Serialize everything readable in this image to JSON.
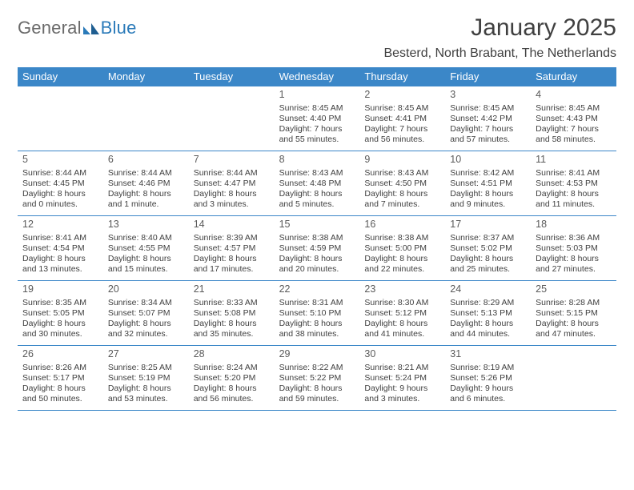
{
  "brand": {
    "name_left": "General",
    "name_right": "Blue"
  },
  "title": "January 2025",
  "location": "Besterd, North Brabant, The Netherlands",
  "colors": {
    "header_bg": "#3b87c8",
    "header_text": "#ffffff",
    "text": "#404040",
    "brand_gray": "#6a6a6a",
    "brand_blue": "#2a7ab9"
  },
  "day_names": [
    "Sunday",
    "Monday",
    "Tuesday",
    "Wednesday",
    "Thursday",
    "Friday",
    "Saturday"
  ],
  "weeks": [
    [
      null,
      null,
      null,
      {
        "n": "1",
        "sunrise": "Sunrise: 8:45 AM",
        "sunset": "Sunset: 4:40 PM",
        "day1": "Daylight: 7 hours",
        "day2": "and 55 minutes."
      },
      {
        "n": "2",
        "sunrise": "Sunrise: 8:45 AM",
        "sunset": "Sunset: 4:41 PM",
        "day1": "Daylight: 7 hours",
        "day2": "and 56 minutes."
      },
      {
        "n": "3",
        "sunrise": "Sunrise: 8:45 AM",
        "sunset": "Sunset: 4:42 PM",
        "day1": "Daylight: 7 hours",
        "day2": "and 57 minutes."
      },
      {
        "n": "4",
        "sunrise": "Sunrise: 8:45 AM",
        "sunset": "Sunset: 4:43 PM",
        "day1": "Daylight: 7 hours",
        "day2": "and 58 minutes."
      }
    ],
    [
      {
        "n": "5",
        "sunrise": "Sunrise: 8:44 AM",
        "sunset": "Sunset: 4:45 PM",
        "day1": "Daylight: 8 hours",
        "day2": "and 0 minutes."
      },
      {
        "n": "6",
        "sunrise": "Sunrise: 8:44 AM",
        "sunset": "Sunset: 4:46 PM",
        "day1": "Daylight: 8 hours",
        "day2": "and 1 minute."
      },
      {
        "n": "7",
        "sunrise": "Sunrise: 8:44 AM",
        "sunset": "Sunset: 4:47 PM",
        "day1": "Daylight: 8 hours",
        "day2": "and 3 minutes."
      },
      {
        "n": "8",
        "sunrise": "Sunrise: 8:43 AM",
        "sunset": "Sunset: 4:48 PM",
        "day1": "Daylight: 8 hours",
        "day2": "and 5 minutes."
      },
      {
        "n": "9",
        "sunrise": "Sunrise: 8:43 AM",
        "sunset": "Sunset: 4:50 PM",
        "day1": "Daylight: 8 hours",
        "day2": "and 7 minutes."
      },
      {
        "n": "10",
        "sunrise": "Sunrise: 8:42 AM",
        "sunset": "Sunset: 4:51 PM",
        "day1": "Daylight: 8 hours",
        "day2": "and 9 minutes."
      },
      {
        "n": "11",
        "sunrise": "Sunrise: 8:41 AM",
        "sunset": "Sunset: 4:53 PM",
        "day1": "Daylight: 8 hours",
        "day2": "and 11 minutes."
      }
    ],
    [
      {
        "n": "12",
        "sunrise": "Sunrise: 8:41 AM",
        "sunset": "Sunset: 4:54 PM",
        "day1": "Daylight: 8 hours",
        "day2": "and 13 minutes."
      },
      {
        "n": "13",
        "sunrise": "Sunrise: 8:40 AM",
        "sunset": "Sunset: 4:55 PM",
        "day1": "Daylight: 8 hours",
        "day2": "and 15 minutes."
      },
      {
        "n": "14",
        "sunrise": "Sunrise: 8:39 AM",
        "sunset": "Sunset: 4:57 PM",
        "day1": "Daylight: 8 hours",
        "day2": "and 17 minutes."
      },
      {
        "n": "15",
        "sunrise": "Sunrise: 8:38 AM",
        "sunset": "Sunset: 4:59 PM",
        "day1": "Daylight: 8 hours",
        "day2": "and 20 minutes."
      },
      {
        "n": "16",
        "sunrise": "Sunrise: 8:38 AM",
        "sunset": "Sunset: 5:00 PM",
        "day1": "Daylight: 8 hours",
        "day2": "and 22 minutes."
      },
      {
        "n": "17",
        "sunrise": "Sunrise: 8:37 AM",
        "sunset": "Sunset: 5:02 PM",
        "day1": "Daylight: 8 hours",
        "day2": "and 25 minutes."
      },
      {
        "n": "18",
        "sunrise": "Sunrise: 8:36 AM",
        "sunset": "Sunset: 5:03 PM",
        "day1": "Daylight: 8 hours",
        "day2": "and 27 minutes."
      }
    ],
    [
      {
        "n": "19",
        "sunrise": "Sunrise: 8:35 AM",
        "sunset": "Sunset: 5:05 PM",
        "day1": "Daylight: 8 hours",
        "day2": "and 30 minutes."
      },
      {
        "n": "20",
        "sunrise": "Sunrise: 8:34 AM",
        "sunset": "Sunset: 5:07 PM",
        "day1": "Daylight: 8 hours",
        "day2": "and 32 minutes."
      },
      {
        "n": "21",
        "sunrise": "Sunrise: 8:33 AM",
        "sunset": "Sunset: 5:08 PM",
        "day1": "Daylight: 8 hours",
        "day2": "and 35 minutes."
      },
      {
        "n": "22",
        "sunrise": "Sunrise: 8:31 AM",
        "sunset": "Sunset: 5:10 PM",
        "day1": "Daylight: 8 hours",
        "day2": "and 38 minutes."
      },
      {
        "n": "23",
        "sunrise": "Sunrise: 8:30 AM",
        "sunset": "Sunset: 5:12 PM",
        "day1": "Daylight: 8 hours",
        "day2": "and 41 minutes."
      },
      {
        "n": "24",
        "sunrise": "Sunrise: 8:29 AM",
        "sunset": "Sunset: 5:13 PM",
        "day1": "Daylight: 8 hours",
        "day2": "and 44 minutes."
      },
      {
        "n": "25",
        "sunrise": "Sunrise: 8:28 AM",
        "sunset": "Sunset: 5:15 PM",
        "day1": "Daylight: 8 hours",
        "day2": "and 47 minutes."
      }
    ],
    [
      {
        "n": "26",
        "sunrise": "Sunrise: 8:26 AM",
        "sunset": "Sunset: 5:17 PM",
        "day1": "Daylight: 8 hours",
        "day2": "and 50 minutes."
      },
      {
        "n": "27",
        "sunrise": "Sunrise: 8:25 AM",
        "sunset": "Sunset: 5:19 PM",
        "day1": "Daylight: 8 hours",
        "day2": "and 53 minutes."
      },
      {
        "n": "28",
        "sunrise": "Sunrise: 8:24 AM",
        "sunset": "Sunset: 5:20 PM",
        "day1": "Daylight: 8 hours",
        "day2": "and 56 minutes."
      },
      {
        "n": "29",
        "sunrise": "Sunrise: 8:22 AM",
        "sunset": "Sunset: 5:22 PM",
        "day1": "Daylight: 8 hours",
        "day2": "and 59 minutes."
      },
      {
        "n": "30",
        "sunrise": "Sunrise: 8:21 AM",
        "sunset": "Sunset: 5:24 PM",
        "day1": "Daylight: 9 hours",
        "day2": "and 3 minutes."
      },
      {
        "n": "31",
        "sunrise": "Sunrise: 8:19 AM",
        "sunset": "Sunset: 5:26 PM",
        "day1": "Daylight: 9 hours",
        "day2": "and 6 minutes."
      },
      null
    ]
  ]
}
